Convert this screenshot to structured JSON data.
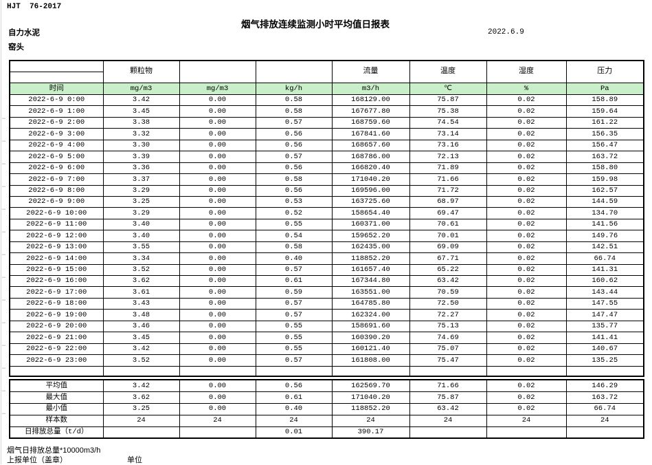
{
  "header": {
    "doc_code": "HJT  76-2017",
    "title": "烟气排放连续监测小时平均值日报表",
    "date": "2022.6.9",
    "company": "自力水泥",
    "location": "窑头"
  },
  "table": {
    "group_headers": [
      "",
      "颗粒物",
      "",
      "",
      "流量",
      "温度",
      "湿度",
      "压力"
    ],
    "unit_row": [
      "时间",
      "mg/m3",
      "mg/m3",
      "kg/h",
      "m3/h",
      "℃",
      "%",
      "Pa"
    ],
    "rows": [
      [
        "2022-6-9 0:00",
        "3.42",
        "0.00",
        "0.58",
        "168129.00",
        "75.87",
        "0.02",
        "158.89"
      ],
      [
        "2022-6-9 1:00",
        "3.45",
        "0.00",
        "0.58",
        "167677.80",
        "75.38",
        "0.02",
        "159.64"
      ],
      [
        "2022-6-9 2:00",
        "3.38",
        "0.00",
        "0.57",
        "168759.60",
        "74.54",
        "0.02",
        "161.22"
      ],
      [
        "2022-6-9 3:00",
        "3.32",
        "0.00",
        "0.56",
        "167841.60",
        "73.14",
        "0.02",
        "156.35"
      ],
      [
        "2022-6-9 4:00",
        "3.30",
        "0.00",
        "0.56",
        "168657.60",
        "73.16",
        "0.02",
        "156.47"
      ],
      [
        "2022-6-9 5:00",
        "3.39",
        "0.00",
        "0.57",
        "168786.00",
        "72.13",
        "0.02",
        "163.72"
      ],
      [
        "2022-6-9 6:00",
        "3.36",
        "0.00",
        "0.56",
        "166820.40",
        "71.89",
        "0.02",
        "158.80"
      ],
      [
        "2022-6-9 7:00",
        "3.37",
        "0.00",
        "0.58",
        "171040.20",
        "71.66",
        "0.02",
        "159.98"
      ],
      [
        "2022-6-9 8:00",
        "3.29",
        "0.00",
        "0.56",
        "169596.00",
        "71.72",
        "0.02",
        "162.57"
      ],
      [
        "2022-6-9 9:00",
        "3.25",
        "0.00",
        "0.53",
        "163725.60",
        "68.97",
        "0.02",
        "144.59"
      ],
      [
        "2022-6-9 10:00",
        "3.29",
        "0.00",
        "0.52",
        "158654.40",
        "69.47",
        "0.02",
        "134.70"
      ],
      [
        "2022-6-9 11:00",
        "3.40",
        "0.00",
        "0.55",
        "160371.00",
        "70.61",
        "0.02",
        "141.56"
      ],
      [
        "2022-6-9 12:00",
        "3.40",
        "0.00",
        "0.54",
        "159652.20",
        "70.01",
        "0.02",
        "149.76"
      ],
      [
        "2022-6-9 13:00",
        "3.55",
        "0.00",
        "0.58",
        "162435.00",
        "69.09",
        "0.02",
        "142.51"
      ],
      [
        "2022-6-9 14:00",
        "3.34",
        "0.00",
        "0.40",
        "118852.20",
        "67.71",
        "0.02",
        "66.74"
      ],
      [
        "2022-6-9 15:00",
        "3.52",
        "0.00",
        "0.57",
        "161657.40",
        "65.22",
        "0.02",
        "141.31"
      ],
      [
        "2022-6-9 16:00",
        "3.62",
        "0.00",
        "0.61",
        "167344.80",
        "63.42",
        "0.02",
        "160.62"
      ],
      [
        "2022-6-9 17:00",
        "3.61",
        "0.00",
        "0.59",
        "163551.00",
        "70.59",
        "0.02",
        "143.44"
      ],
      [
        "2022-6-9 18:00",
        "3.43",
        "0.00",
        "0.57",
        "164785.80",
        "72.50",
        "0.02",
        "147.55"
      ],
      [
        "2022-6-9 19:00",
        "3.48",
        "0.00",
        "0.57",
        "162324.00",
        "72.27",
        "0.02",
        "147.47"
      ],
      [
        "2022-6-9 20:00",
        "3.46",
        "0.00",
        "0.55",
        "158691.60",
        "75.13",
        "0.02",
        "135.77"
      ],
      [
        "2022-6-9 21:00",
        "3.45",
        "0.00",
        "0.55",
        "160390.20",
        "74.69",
        "0.02",
        "141.41"
      ],
      [
        "2022-6-9 22:00",
        "3.42",
        "0.00",
        "0.55",
        "160121.40",
        "75.07",
        "0.02",
        "140.67"
      ],
      [
        "2022-6-9 23:00",
        "3.52",
        "0.00",
        "0.57",
        "161808.00",
        "75.47",
        "0.02",
        "135.25"
      ]
    ],
    "summary": [
      [
        "平均值",
        "3.42",
        "0.00",
        "0.56",
        "162569.70",
        "71.66",
        "0.02",
        "146.29"
      ],
      [
        "最大值",
        "3.62",
        "0.00",
        "0.61",
        "171040.20",
        "75.87",
        "0.02",
        "163.72"
      ],
      [
        "最小值",
        "3.25",
        "0.00",
        "0.40",
        "118852.20",
        "63.42",
        "0.02",
        "66.74"
      ],
      [
        "样本数",
        "24",
        "24",
        "24",
        "24",
        "24",
        "24",
        "24"
      ],
      [
        "日排放总量（t/d）",
        "",
        "",
        "0.01",
        "390.17",
        "",
        "",
        ""
      ]
    ]
  },
  "footer": {
    "note_flow_total": "烟气日排放总量*10000m3/h",
    "note_report_unit": "上报单位（盖章）",
    "note_unit": "单位"
  },
  "colors": {
    "unit_row_bg": "#c9efc9"
  }
}
